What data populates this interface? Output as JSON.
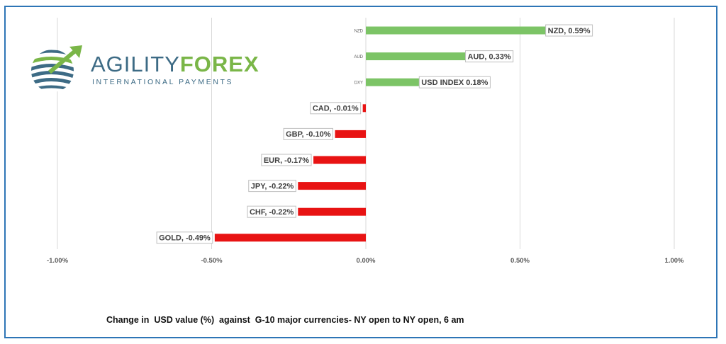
{
  "chart_data": {
    "type": "bar",
    "orientation": "horizontal",
    "categories": [
      "NZD",
      "AUD",
      "DXY",
      "CAD",
      "GBP",
      "EUR",
      "JPY",
      "CHF",
      "GOLD"
    ],
    "values": [
      0.59,
      0.33,
      0.18,
      -0.01,
      -0.1,
      -0.17,
      -0.22,
      -0.22,
      -0.49
    ],
    "data_labels": [
      "NZD, 0.59%",
      "AUD, 0.33%",
      "USD INDEX 0.18%",
      "CAD, -0.01%",
      "GBP, -0.10%",
      "EUR, -0.17%",
      "JPY, -0.22%",
      "CHF, -0.22%",
      "GOLD, -0.49%"
    ],
    "x_ticks": [
      "-1.00%",
      "-0.50%",
      "0.00%",
      "0.50%",
      "1.00%"
    ],
    "xlim": [
      -1.0,
      1.0
    ],
    "grid": "vertical",
    "colors": {
      "positive": "#7cc466",
      "negative": "#e81313",
      "axis": "#595959",
      "grid": "#d9d9d9"
    },
    "caption": "Change in  USD value (%)  against  G-10 major currencies- NY open to NY open, 6 am"
  },
  "logo": {
    "brand_part1": "AGILITY",
    "brand_part2": "FOREX",
    "tagline": "INTERNATIONAL PAYMENTS",
    "colors": {
      "blue": "#3d6b85",
      "green": "#7ab648"
    }
  }
}
